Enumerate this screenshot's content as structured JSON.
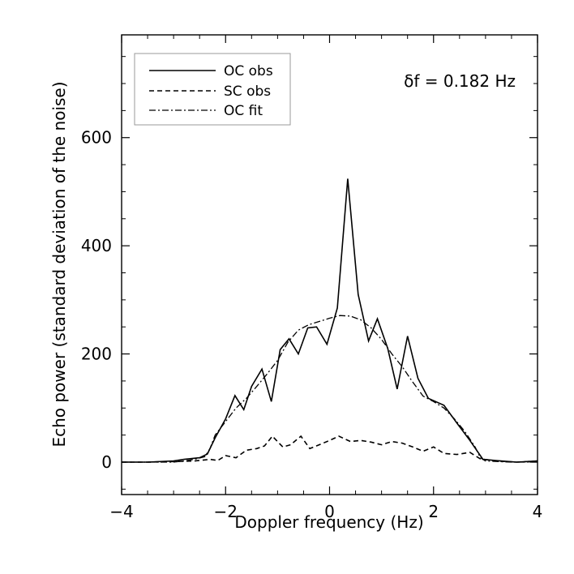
{
  "chart_data": {
    "type": "line",
    "title": "",
    "xlabel": "Doppler frequency (Hz)",
    "ylabel": "Echo power (standard deviation of the noise)",
    "xlim": [
      -4,
      4
    ],
    "ylim": [
      -60,
      790
    ],
    "xticks": [
      -4,
      -2,
      0,
      2,
      4
    ],
    "xtick_labels": [
      "−4",
      "−2",
      "0",
      "2",
      "4"
    ],
    "yticks": [
      0,
      200,
      400,
      600
    ],
    "ytick_labels": [
      "0",
      "200",
      "400",
      "600"
    ],
    "annotation": "δf = 0.182 Hz",
    "legend": {
      "position": "top-left"
    },
    "series": [
      {
        "name": "OC obs",
        "style": "solid",
        "x": [
          -4.0,
          -3.5,
          -3.0,
          -2.8,
          -2.5,
          -2.35,
          -2.2,
          -2.0,
          -1.82,
          -1.65,
          -1.5,
          -1.3,
          -1.12,
          -0.95,
          -0.78,
          -0.6,
          -0.42,
          -0.25,
          -0.05,
          0.15,
          0.35,
          0.55,
          0.75,
          0.92,
          1.12,
          1.3,
          1.5,
          1.7,
          1.9,
          2.2,
          2.45,
          2.7,
          2.95,
          3.2,
          3.6,
          4.0
        ],
        "y": [
          0,
          0,
          2,
          5,
          8,
          15,
          45,
          80,
          123,
          97,
          140,
          172,
          112,
          208,
          228,
          200,
          248,
          250,
          218,
          285,
          524,
          310,
          224,
          265,
          210,
          135,
          233,
          155,
          118,
          105,
          72,
          40,
          5,
          3,
          0,
          2
        ]
      },
      {
        "name": "SC obs",
        "style": "dashed",
        "x": [
          -4.0,
          -3.5,
          -3.0,
          -2.6,
          -2.3,
          -2.15,
          -2.0,
          -1.8,
          -1.6,
          -1.4,
          -1.25,
          -1.1,
          -0.9,
          -0.75,
          -0.55,
          -0.38,
          -0.2,
          0.0,
          0.18,
          0.4,
          0.6,
          0.8,
          1.0,
          1.2,
          1.4,
          1.6,
          1.8,
          2.0,
          2.2,
          2.45,
          2.7,
          2.9,
          3.2,
          3.6,
          4.0
        ],
        "y": [
          0,
          0,
          1,
          2,
          5,
          3,
          12,
          8,
          22,
          25,
          30,
          48,
          28,
          32,
          48,
          25,
          32,
          40,
          48,
          38,
          40,
          37,
          32,
          38,
          35,
          28,
          20,
          28,
          16,
          14,
          18,
          6,
          2,
          0,
          2
        ]
      },
      {
        "name": "OC fit",
        "style": "dashdot",
        "x": [
          -4.0,
          -3.0,
          -2.8,
          -2.6,
          -2.4,
          -2.3,
          -2.2,
          -2.0,
          -1.8,
          -1.6,
          -1.4,
          -1.2,
          -1.0,
          -0.8,
          -0.6,
          -0.4,
          -0.2,
          0.0,
          0.2,
          0.4,
          0.6,
          0.8,
          1.0,
          1.2,
          1.4,
          1.6,
          1.8,
          2.0,
          2.2,
          2.4,
          2.6,
          2.8,
          2.9,
          3.0,
          3.5,
          4.0
        ],
        "y": [
          0,
          0,
          2,
          5,
          10,
          25,
          50,
          75,
          100,
          118,
          140,
          163,
          188,
          222,
          244,
          254,
          260,
          266,
          271,
          270,
          263,
          248,
          227,
          200,
          176,
          148,
          122,
          112,
          100,
          80,
          57,
          28,
          8,
          2,
          0,
          0
        ]
      }
    ]
  }
}
